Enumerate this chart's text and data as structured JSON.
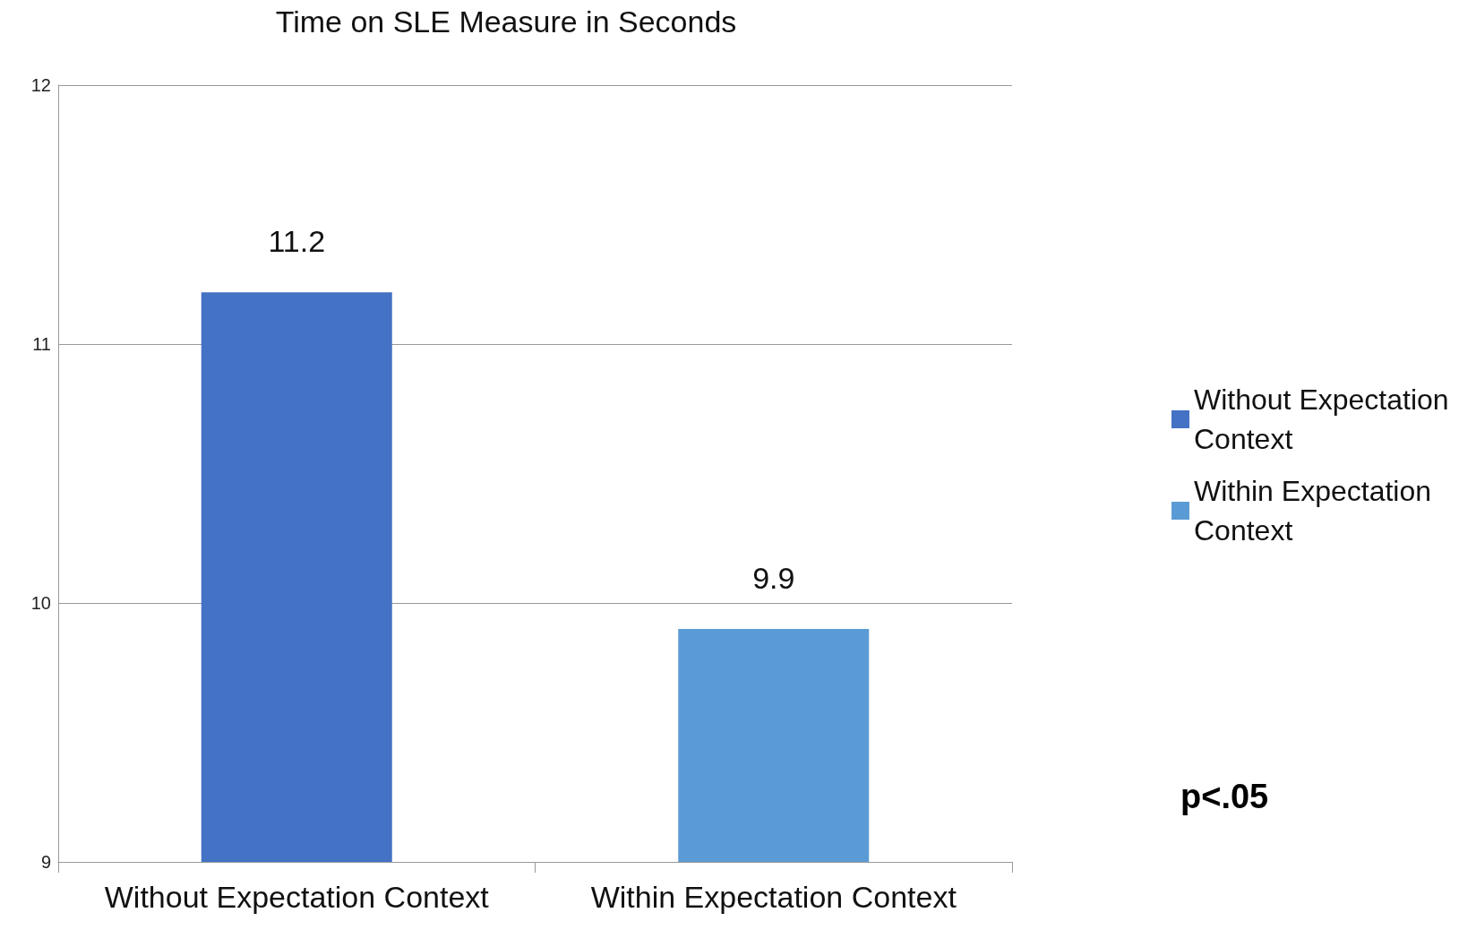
{
  "chart_data": {
    "type": "bar",
    "title": "Time on SLE Measure in Seconds",
    "categories": [
      "Without Expectation Context",
      "Within Expectation Context"
    ],
    "series": [
      {
        "name": "Without Expectation Context",
        "color": "#4472c4",
        "values": [
          11.2,
          null
        ]
      },
      {
        "name": "Within Expectation Context",
        "color": "#5b9bd5",
        "values": [
          null,
          9.9
        ]
      }
    ],
    "ylim": [
      9,
      12
    ],
    "yticks": [
      9,
      10,
      11,
      12
    ],
    "grid": "y",
    "legend": "right",
    "data_labels": true,
    "annotations": [
      "p<.05"
    ]
  }
}
